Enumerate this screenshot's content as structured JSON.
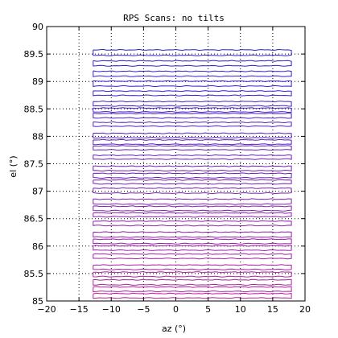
{
  "chart_data": {
    "type": "line",
    "title": "RPS Scans: no tilts",
    "xlabel": "az (°)",
    "ylabel": "el (°)",
    "xlim": [
      -20,
      20
    ],
    "ylim": [
      85,
      90
    ],
    "xticks": [
      -20,
      -15,
      -10,
      -5,
      0,
      5,
      10,
      15,
      20
    ],
    "xtick_labels": [
      "−20",
      "−15",
      "−10",
      "−5",
      "0",
      "5",
      "10",
      "15",
      "20"
    ],
    "yticks": [
      85,
      85.5,
      86,
      86.5,
      87,
      87.5,
      88,
      88.5,
      89,
      89.5,
      90
    ],
    "ytick_labels": [
      "85",
      "85.5",
      "86",
      "86.5",
      "87",
      "87.5",
      "88",
      "88.5",
      "89",
      "89.5",
      "90"
    ],
    "grid": true,
    "scan_az_range": [
      -12.8,
      17.9
    ],
    "scans": [
      {
        "el_start": 89.575,
        "el_end": 89.475,
        "color": "#2a1fd6"
      },
      {
        "el_start": 89.375,
        "el_end": 89.285,
        "color": "#2f1fd4"
      },
      {
        "el_start": 89.185,
        "el_end": 89.095,
        "color": "#341fd2"
      },
      {
        "el_start": 89.005,
        "el_end": 88.915,
        "color": "#391fd0"
      },
      {
        "el_start": 88.825,
        "el_end": 88.745,
        "color": "#3e1fce"
      },
      {
        "el_start": 88.635,
        "el_end": 88.555,
        "color": "#431fcc"
      },
      {
        "el_start": 88.515,
        "el_end": 88.445,
        "color": "#481fca"
      },
      {
        "el_start": 88.415,
        "el_end": 88.335,
        "color": "#4d1fc8"
      },
      {
        "el_start": 88.255,
        "el_end": 88.185,
        "color": "#521fc6"
      },
      {
        "el_start": 88.055,
        "el_end": 87.975,
        "color": "#571fc4"
      },
      {
        "el_start": 87.935,
        "el_end": 87.855,
        "color": "#5c1fc2"
      },
      {
        "el_start": 87.825,
        "el_end": 87.755,
        "color": "#611fc0"
      },
      {
        "el_start": 87.655,
        "el_end": 87.585,
        "color": "#661fbe"
      },
      {
        "el_start": 87.455,
        "el_end": 87.375,
        "color": "#6b1fbc"
      },
      {
        "el_start": 87.325,
        "el_end": 87.245,
        "color": "#701fba"
      },
      {
        "el_start": 87.205,
        "el_end": 87.135,
        "color": "#751fb8"
      },
      {
        "el_start": 87.055,
        "el_end": 86.965,
        "color": "#7a1fb6"
      },
      {
        "el_start": 86.855,
        "el_end": 86.765,
        "color": "#7f1fb4"
      },
      {
        "el_start": 86.725,
        "el_end": 86.645,
        "color": "#841fb2"
      },
      {
        "el_start": 86.605,
        "el_end": 86.535,
        "color": "#891fb0"
      },
      {
        "el_start": 86.455,
        "el_end": 86.375,
        "color": "#8e1fae"
      },
      {
        "el_start": 86.255,
        "el_end": 86.165,
        "color": "#931fac"
      },
      {
        "el_start": 86.125,
        "el_end": 86.045,
        "color": "#981faa"
      },
      {
        "el_start": 86.005,
        "el_end": 85.925,
        "color": "#9d1fa8"
      },
      {
        "el_start": 85.855,
        "el_end": 85.775,
        "color": "#a21fa6"
      },
      {
        "el_start": 85.655,
        "el_end": 85.575,
        "color": "#a71fa4"
      },
      {
        "el_start": 85.525,
        "el_end": 85.445,
        "color": "#ac1fa2"
      },
      {
        "el_start": 85.385,
        "el_end": 85.295,
        "color": "#b11fa0"
      },
      {
        "el_start": 85.255,
        "el_end": 85.175,
        "color": "#b61f9e"
      },
      {
        "el_start": 85.135,
        "el_end": 85.055,
        "color": "#bb1f9c"
      }
    ]
  }
}
